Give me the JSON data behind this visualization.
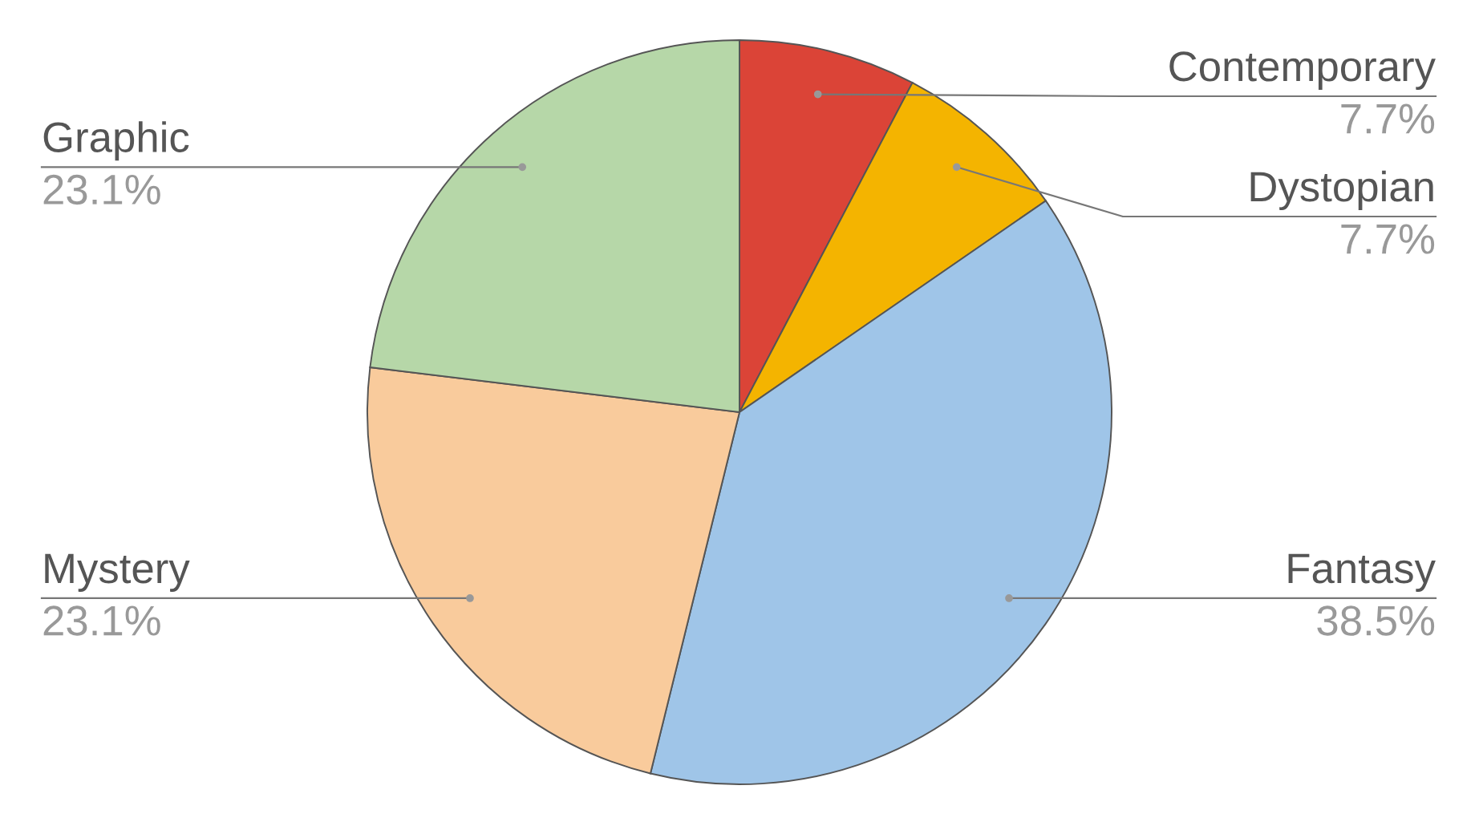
{
  "chart_data": {
    "type": "pie",
    "categories": [
      "Contemporary",
      "Dystopian",
      "Fantasy",
      "Mystery",
      "Graphic"
    ],
    "values": [
      7.7,
      7.7,
      38.5,
      23.1,
      23.1
    ],
    "colors": [
      "#db4437",
      "#f4b400",
      "#9fc5e8",
      "#f9cb9c",
      "#b6d7a8"
    ],
    "value_labels": [
      "7.7%",
      "7.7%",
      "38.5%",
      "23.1%",
      "23.1%"
    ],
    "legend": false
  }
}
